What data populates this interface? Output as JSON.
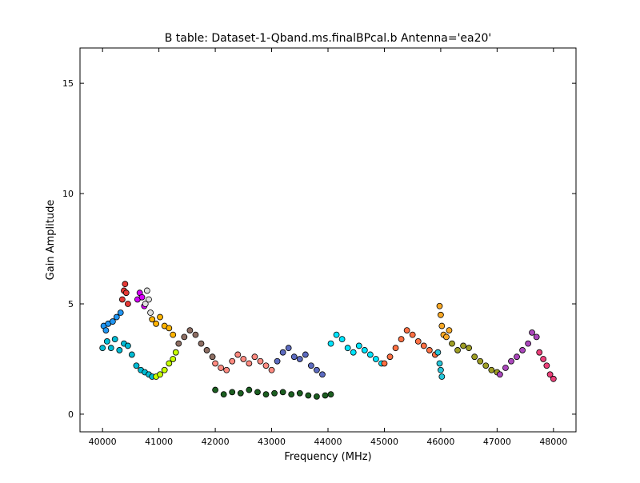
{
  "chart_data": {
    "type": "scatter",
    "title": "B table: Dataset-1-Qband.ms.finalBPcal.b      Antenna='ea20'",
    "xlabel": "Frequency (MHz)",
    "ylabel": "Gain Amplitude",
    "xlim": [
      39600,
      48400
    ],
    "ylim": [
      -0.8,
      16.6
    ],
    "xticks": [
      40000,
      41000,
      42000,
      43000,
      44000,
      45000,
      46000,
      47000,
      48000
    ],
    "yticks": [
      0,
      5,
      10,
      15
    ],
    "grid": false,
    "legend": "none",
    "marker": "circle",
    "series": [
      {
        "color": "#00bcd4",
        "x": [
          40000,
          40080,
          40150,
          40220,
          40300,
          40380,
          40450,
          40520,
          40600,
          40680,
          40750,
          40820,
          40880
        ],
        "y": [
          3.0,
          3.3,
          3.0,
          3.4,
          2.9,
          3.2,
          3.1,
          2.7,
          2.2,
          2.0,
          1.9,
          1.8,
          1.7
        ]
      },
      {
        "color": "#2196f3",
        "x": [
          40020,
          40060,
          40100,
          40180,
          40250,
          40320
        ],
        "y": [
          4.0,
          3.8,
          4.1,
          4.2,
          4.4,
          4.6
        ]
      },
      {
        "color": "#e53935",
        "x": [
          40350,
          40380,
          40400,
          40420,
          40450
        ],
        "y": [
          5.2,
          5.6,
          5.9,
          5.5,
          5.0
        ]
      },
      {
        "color": "#d500f9",
        "x": [
          40620,
          40660,
          40700,
          40740
        ],
        "y": [
          5.2,
          5.5,
          5.3,
          4.9
        ]
      },
      {
        "color": "#e0e0e0",
        "x": [
          40760,
          40790,
          40820,
          40850
        ],
        "y": [
          5.0,
          5.6,
          5.2,
          4.6
        ]
      },
      {
        "color": "#ffb300",
        "x": [
          40880,
          40950,
          41020,
          41100,
          41180,
          41250
        ],
        "y": [
          4.3,
          4.1,
          4.4,
          4.0,
          3.9,
          3.6
        ]
      },
      {
        "color": "#c6ff00",
        "x": [
          40950,
          41020,
          41100,
          41180,
          41250,
          41300
        ],
        "y": [
          1.7,
          1.8,
          2.0,
          2.3,
          2.5,
          2.8
        ]
      },
      {
        "color": "#8d6e63",
        "x": [
          41350,
          41450,
          41550,
          41650,
          41750,
          41850,
          41950
        ],
        "y": [
          3.2,
          3.5,
          3.8,
          3.6,
          3.2,
          2.9,
          2.6
        ]
      },
      {
        "color": "#ff8a80",
        "x": [
          42000,
          42100,
          42200,
          42300,
          42400,
          42500,
          42600,
          42700,
          42800,
          42900,
          43000
        ],
        "y": [
          2.3,
          2.1,
          2.0,
          2.4,
          2.7,
          2.5,
          2.3,
          2.6,
          2.4,
          2.2,
          2.0
        ]
      },
      {
        "color": "#5c6bc0",
        "x": [
          43100,
          43200,
          43300,
          43400,
          43500,
          43600,
          43700,
          43800,
          43900
        ],
        "y": [
          2.4,
          2.8,
          3.0,
          2.6,
          2.5,
          2.7,
          2.2,
          2.0,
          1.8
        ]
      },
      {
        "color": "#1b5e20",
        "x": [
          42000,
          42150,
          42300,
          42450,
          42600,
          42750,
          42900,
          43050,
          43200,
          43350,
          43500,
          43650,
          43800,
          43950,
          44050
        ],
        "y": [
          1.1,
          0.9,
          1.0,
          0.95,
          1.1,
          1.0,
          0.9,
          0.95,
          1.0,
          0.9,
          0.95,
          0.85,
          0.8,
          0.85,
          0.9
        ]
      },
      {
        "color": "#00e5ff",
        "x": [
          44050,
          44150,
          44250,
          44350,
          44450,
          44550,
          44650,
          44750,
          44850,
          44950
        ],
        "y": [
          3.2,
          3.6,
          3.4,
          3.0,
          2.8,
          3.1,
          2.9,
          2.7,
          2.5,
          2.3
        ]
      },
      {
        "color": "#ff7043",
        "x": [
          45000,
          45100,
          45200,
          45300,
          45400,
          45500,
          45600,
          45700,
          45800,
          45900
        ],
        "y": [
          2.3,
          2.6,
          3.0,
          3.4,
          3.8,
          3.6,
          3.3,
          3.1,
          2.9,
          2.7
        ]
      },
      {
        "color": "#f9a825",
        "x": [
          45980,
          46000,
          46020,
          46050,
          46100,
          46150
        ],
        "y": [
          4.9,
          4.5,
          4.0,
          3.6,
          3.5,
          3.8
        ]
      },
      {
        "color": "#26c6da",
        "x": [
          45950,
          45980,
          46000,
          46020
        ],
        "y": [
          2.8,
          2.3,
          2.0,
          1.7
        ]
      },
      {
        "color": "#9e9d24",
        "x": [
          46200,
          46300,
          46400,
          46500,
          46600,
          46700,
          46800,
          46900,
          47000
        ],
        "y": [
          3.2,
          2.9,
          3.1,
          3.0,
          2.6,
          2.4,
          2.2,
          2.0,
          1.9
        ]
      },
      {
        "color": "#ab47bc",
        "x": [
          47050,
          47150,
          47250,
          47350,
          47450,
          47550,
          47620,
          47700
        ],
        "y": [
          1.8,
          2.1,
          2.4,
          2.6,
          2.9,
          3.2,
          3.7,
          3.5
        ]
      },
      {
        "color": "#ec407a",
        "x": [
          47750,
          47820,
          47880,
          47940,
          48000
        ],
        "y": [
          2.8,
          2.5,
          2.2,
          1.8,
          1.6
        ]
      }
    ]
  }
}
